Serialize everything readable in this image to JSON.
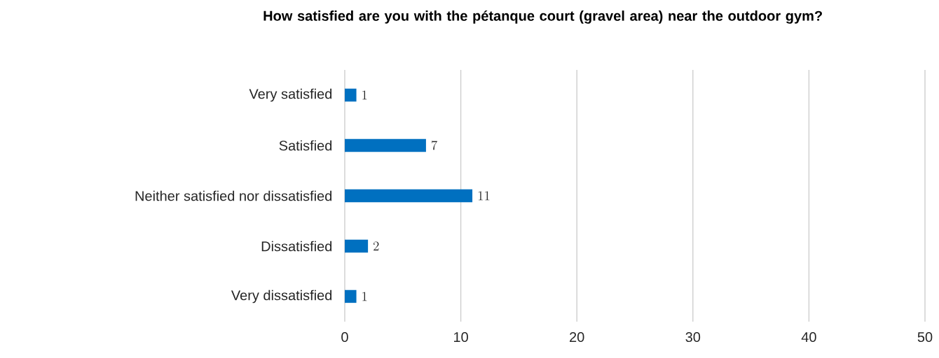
{
  "chart_data": {
    "type": "bar",
    "orientation": "horizontal",
    "title": "How satisfied are you with the pétanque court (gravel area) near the outdoor gym?",
    "categories": [
      "Very satisfied",
      "Satisfied",
      "Neither satisfied nor dissatisfied",
      "Dissatisfied",
      "Very dissatisfied"
    ],
    "values": [
      1,
      7,
      11,
      2,
      1
    ],
    "color": "#0070c0",
    "xlim": [
      0,
      50
    ],
    "xticks": [
      0,
      10,
      20,
      30,
      40,
      50
    ],
    "grid": "x",
    "data_labels": true
  }
}
